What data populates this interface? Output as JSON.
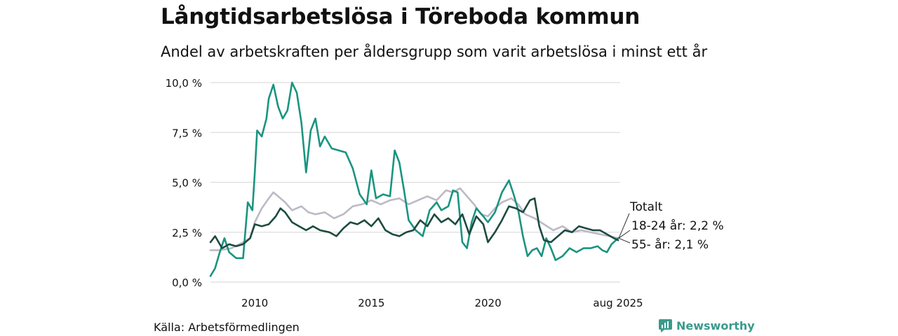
{
  "header": {
    "title": "Långtidsarbetslösa i Töreboda kommun",
    "subtitle": "Andel av arbetskraften per åldersgrupp som varit arbetslösa i minst ett år"
  },
  "footer": {
    "source": "Källa: Arbetsförmedlingen",
    "brand": "Newsworthy"
  },
  "colors": {
    "total": "#bdb9c6",
    "age_18_24": "#1a9480",
    "age_55": "#1d4b40",
    "grid": "#dddddd",
    "brand": "#3a9a8c"
  },
  "chart_data": {
    "type": "line",
    "x_unit": "year",
    "xlim": [
      2008.1,
      2025.67
    ],
    "ylim": [
      0,
      10
    ],
    "y_ticks": [
      {
        "value": 0,
        "label": "0,0 %"
      },
      {
        "value": 2.5,
        "label": "2,5 %"
      },
      {
        "value": 5,
        "label": "5,0 %"
      },
      {
        "value": 7.5,
        "label": "7,5 %"
      },
      {
        "value": 10,
        "label": "10,0 %"
      }
    ],
    "x_ticks": [
      {
        "value": 2010,
        "label": "2010"
      },
      {
        "value": 2015,
        "label": "2015"
      },
      {
        "value": 2020,
        "label": "2020"
      },
      {
        "value": 2025.58,
        "label": "aug 2025"
      }
    ],
    "grid": true,
    "series": [
      {
        "name": "Totalt",
        "color_key": "total",
        "points": [
          [
            2008.1,
            1.6
          ],
          [
            2008.5,
            1.6
          ],
          [
            2009.0,
            1.7
          ],
          [
            2009.5,
            2.0
          ],
          [
            2009.8,
            2.2
          ],
          [
            2010.0,
            3.0
          ],
          [
            2010.3,
            3.7
          ],
          [
            2010.6,
            4.2
          ],
          [
            2010.8,
            4.5
          ],
          [
            2011.0,
            4.3
          ],
          [
            2011.3,
            4.0
          ],
          [
            2011.6,
            3.6
          ],
          [
            2012.0,
            3.8
          ],
          [
            2012.3,
            3.5
          ],
          [
            2012.6,
            3.4
          ],
          [
            2013.0,
            3.5
          ],
          [
            2013.4,
            3.2
          ],
          [
            2013.8,
            3.4
          ],
          [
            2014.2,
            3.8
          ],
          [
            2014.6,
            3.9
          ],
          [
            2015.0,
            4.1
          ],
          [
            2015.4,
            3.9
          ],
          [
            2015.8,
            4.1
          ],
          [
            2016.2,
            4.2
          ],
          [
            2016.6,
            3.9
          ],
          [
            2017.0,
            4.1
          ],
          [
            2017.4,
            4.3
          ],
          [
            2017.8,
            4.1
          ],
          [
            2018.2,
            4.6
          ],
          [
            2018.5,
            4.5
          ],
          [
            2018.8,
            4.7
          ],
          [
            2019.1,
            4.3
          ],
          [
            2019.4,
            3.9
          ],
          [
            2019.7,
            3.4
          ],
          [
            2020.0,
            3.3
          ],
          [
            2020.3,
            3.7
          ],
          [
            2020.6,
            4.0
          ],
          [
            2021.0,
            4.2
          ],
          [
            2021.3,
            3.9
          ],
          [
            2021.6,
            3.4
          ],
          [
            2022.0,
            3.2
          ],
          [
            2022.4,
            2.9
          ],
          [
            2022.8,
            2.6
          ],
          [
            2023.2,
            2.8
          ],
          [
            2023.6,
            2.5
          ],
          [
            2024.0,
            2.6
          ],
          [
            2024.4,
            2.5
          ],
          [
            2024.8,
            2.4
          ],
          [
            2025.2,
            2.3
          ],
          [
            2025.58,
            2.2
          ]
        ]
      },
      {
        "name": "18-24 år",
        "end_label": "18-24 år: 2,2 %",
        "color_key": "age_18_24",
        "points": [
          [
            2008.1,
            0.3
          ],
          [
            2008.3,
            0.7
          ],
          [
            2008.5,
            1.5
          ],
          [
            2008.7,
            2.2
          ],
          [
            2008.9,
            1.5
          ],
          [
            2009.2,
            1.2
          ],
          [
            2009.5,
            1.2
          ],
          [
            2009.7,
            4.0
          ],
          [
            2009.9,
            3.6
          ],
          [
            2010.0,
            5.5
          ],
          [
            2010.1,
            7.6
          ],
          [
            2010.3,
            7.3
          ],
          [
            2010.5,
            8.2
          ],
          [
            2010.6,
            9.2
          ],
          [
            2010.8,
            9.9
          ],
          [
            2011.0,
            8.8
          ],
          [
            2011.2,
            8.2
          ],
          [
            2011.4,
            8.6
          ],
          [
            2011.6,
            10.0
          ],
          [
            2011.8,
            9.5
          ],
          [
            2012.0,
            8.0
          ],
          [
            2012.2,
            5.5
          ],
          [
            2012.4,
            7.6
          ],
          [
            2012.6,
            8.2
          ],
          [
            2012.8,
            6.8
          ],
          [
            2013.0,
            7.3
          ],
          [
            2013.3,
            6.7
          ],
          [
            2013.6,
            6.6
          ],
          [
            2013.9,
            6.5
          ],
          [
            2014.2,
            5.7
          ],
          [
            2014.5,
            4.4
          ],
          [
            2014.8,
            3.9
          ],
          [
            2015.0,
            5.6
          ],
          [
            2015.2,
            4.2
          ],
          [
            2015.5,
            4.4
          ],
          [
            2015.8,
            4.3
          ],
          [
            2016.0,
            6.6
          ],
          [
            2016.2,
            6.0
          ],
          [
            2016.4,
            4.6
          ],
          [
            2016.6,
            3.1
          ],
          [
            2016.9,
            2.6
          ],
          [
            2017.2,
            2.3
          ],
          [
            2017.5,
            3.6
          ],
          [
            2017.8,
            4.0
          ],
          [
            2018.0,
            3.6
          ],
          [
            2018.3,
            3.8
          ],
          [
            2018.5,
            4.6
          ],
          [
            2018.7,
            4.5
          ],
          [
            2018.9,
            2.0
          ],
          [
            2019.1,
            1.7
          ],
          [
            2019.3,
            3.0
          ],
          [
            2019.5,
            3.7
          ],
          [
            2019.8,
            3.3
          ],
          [
            2020.0,
            3.0
          ],
          [
            2020.3,
            3.5
          ],
          [
            2020.6,
            4.5
          ],
          [
            2020.9,
            5.1
          ],
          [
            2021.1,
            4.4
          ],
          [
            2021.3,
            3.6
          ],
          [
            2021.5,
            2.3
          ],
          [
            2021.7,
            1.3
          ],
          [
            2021.9,
            1.6
          ],
          [
            2022.1,
            1.7
          ],
          [
            2022.3,
            1.3
          ],
          [
            2022.5,
            2.2
          ],
          [
            2022.7,
            1.7
          ],
          [
            2022.9,
            1.1
          ],
          [
            2023.2,
            1.3
          ],
          [
            2023.5,
            1.7
          ],
          [
            2023.8,
            1.5
          ],
          [
            2024.1,
            1.7
          ],
          [
            2024.4,
            1.7
          ],
          [
            2024.7,
            1.8
          ],
          [
            2024.9,
            1.6
          ],
          [
            2025.1,
            1.5
          ],
          [
            2025.3,
            1.9
          ],
          [
            2025.58,
            2.2
          ]
        ]
      },
      {
        "name": "55- år",
        "end_label": "55- år: 2,1 %",
        "color_key": "age_55",
        "points": [
          [
            2008.1,
            2.0
          ],
          [
            2008.3,
            2.3
          ],
          [
            2008.6,
            1.7
          ],
          [
            2008.9,
            1.9
          ],
          [
            2009.2,
            1.8
          ],
          [
            2009.5,
            1.9
          ],
          [
            2009.8,
            2.2
          ],
          [
            2010.0,
            2.9
          ],
          [
            2010.3,
            2.8
          ],
          [
            2010.6,
            2.9
          ],
          [
            2010.9,
            3.3
          ],
          [
            2011.1,
            3.7
          ],
          [
            2011.3,
            3.5
          ],
          [
            2011.6,
            3.0
          ],
          [
            2011.9,
            2.8
          ],
          [
            2012.2,
            2.6
          ],
          [
            2012.5,
            2.8
          ],
          [
            2012.8,
            2.6
          ],
          [
            2013.2,
            2.5
          ],
          [
            2013.5,
            2.3
          ],
          [
            2013.8,
            2.7
          ],
          [
            2014.1,
            3.0
          ],
          [
            2014.4,
            2.9
          ],
          [
            2014.7,
            3.1
          ],
          [
            2015.0,
            2.8
          ],
          [
            2015.3,
            3.2
          ],
          [
            2015.6,
            2.6
          ],
          [
            2015.9,
            2.4
          ],
          [
            2016.2,
            2.3
          ],
          [
            2016.5,
            2.5
          ],
          [
            2016.8,
            2.6
          ],
          [
            2017.1,
            3.1
          ],
          [
            2017.4,
            2.8
          ],
          [
            2017.7,
            3.4
          ],
          [
            2018.0,
            3.0
          ],
          [
            2018.3,
            3.2
          ],
          [
            2018.6,
            2.9
          ],
          [
            2018.9,
            3.4
          ],
          [
            2019.2,
            2.4
          ],
          [
            2019.5,
            3.3
          ],
          [
            2019.8,
            2.9
          ],
          [
            2020.0,
            2.0
          ],
          [
            2020.3,
            2.5
          ],
          [
            2020.6,
            3.1
          ],
          [
            2020.9,
            3.8
          ],
          [
            2021.2,
            3.7
          ],
          [
            2021.5,
            3.5
          ],
          [
            2021.8,
            4.1
          ],
          [
            2022.0,
            4.2
          ],
          [
            2022.2,
            2.8
          ],
          [
            2022.4,
            2.1
          ],
          [
            2022.7,
            2.0
          ],
          [
            2023.0,
            2.3
          ],
          [
            2023.3,
            2.6
          ],
          [
            2023.6,
            2.5
          ],
          [
            2023.9,
            2.8
          ],
          [
            2024.2,
            2.7
          ],
          [
            2024.5,
            2.6
          ],
          [
            2024.8,
            2.6
          ],
          [
            2025.1,
            2.4
          ],
          [
            2025.4,
            2.2
          ],
          [
            2025.58,
            2.1
          ]
        ]
      }
    ],
    "annotations": {
      "legend_title": "Totalt"
    }
  }
}
